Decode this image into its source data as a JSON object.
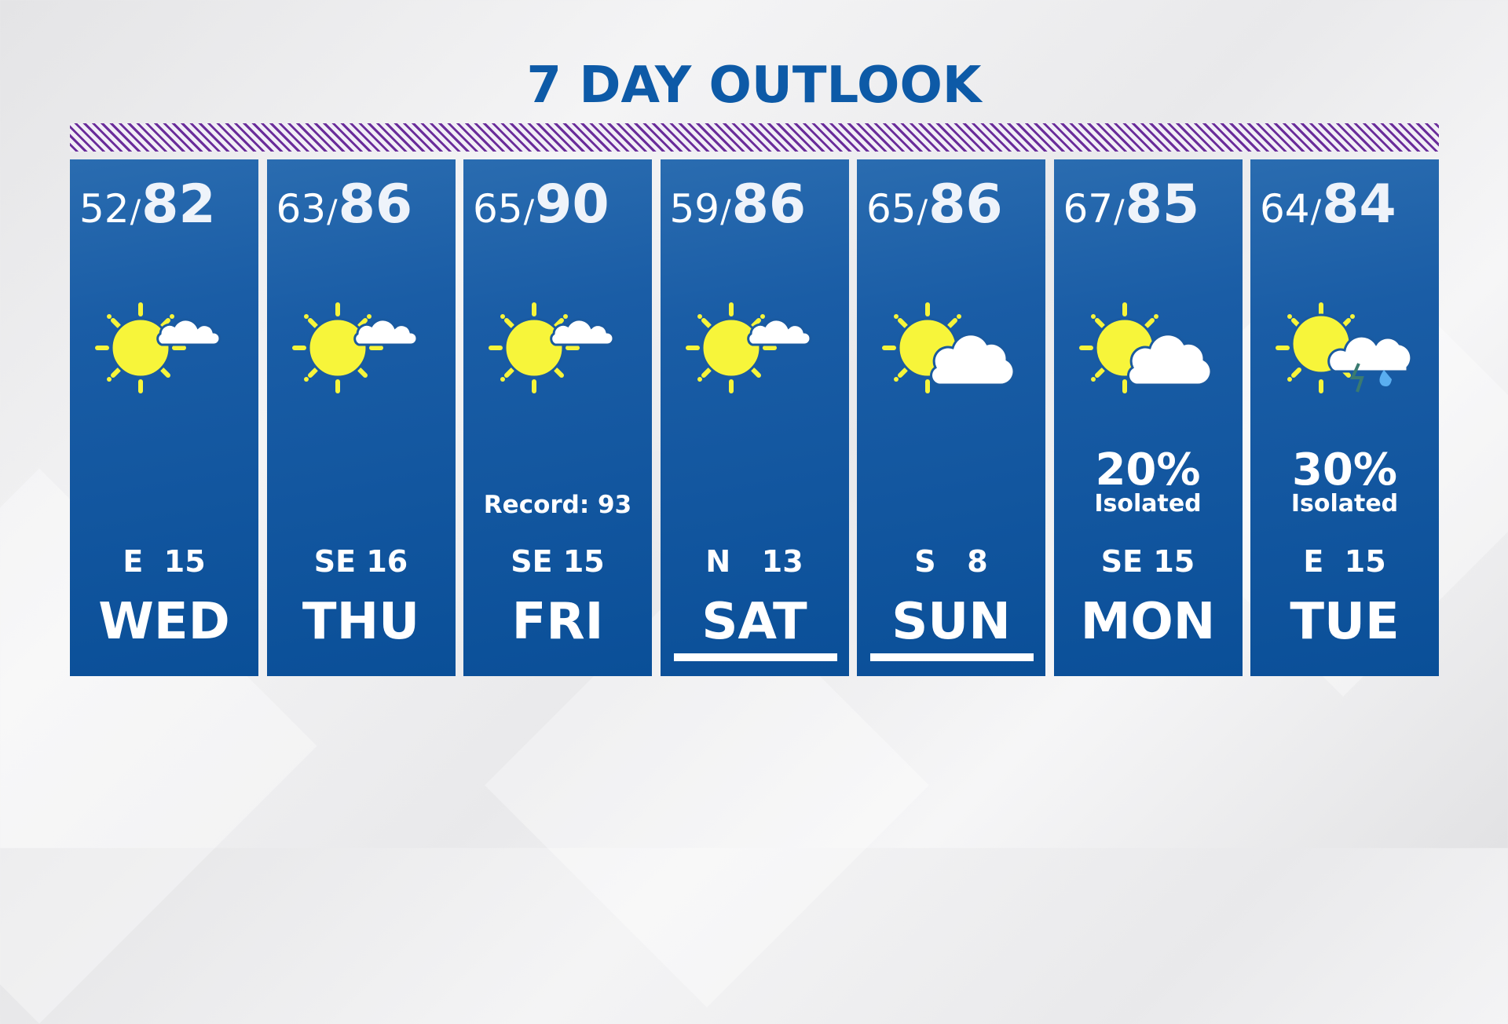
{
  "title": "7 DAY OUTLOOK",
  "colors": {
    "title": "#0d5aa7",
    "panel": "#0a4f98",
    "hatch": "#6a2d9a",
    "sun": "#f7f53a",
    "cloud": "#ffffff"
  },
  "days": [
    {
      "day": "WED",
      "low": "52",
      "high": "82",
      "icon": "sun-small-cloud-icon",
      "wind": "E  15",
      "note": "",
      "precip": "",
      "precip_note": "",
      "weekend": false
    },
    {
      "day": "THU",
      "low": "63",
      "high": "86",
      "icon": "sun-small-cloud-icon",
      "wind": "SE 16",
      "note": "",
      "precip": "",
      "precip_note": "",
      "weekend": false
    },
    {
      "day": "FRI",
      "low": "65",
      "high": "90",
      "icon": "sun-small-cloud-icon",
      "wind": "SE 15",
      "note": "Record: 93",
      "precip": "",
      "precip_note": "",
      "weekend": false
    },
    {
      "day": "SAT",
      "low": "59",
      "high": "86",
      "icon": "sun-small-cloud-icon",
      "wind": "N   13",
      "note": "",
      "precip": "",
      "precip_note": "",
      "weekend": true
    },
    {
      "day": "SUN",
      "low": "65",
      "high": "86",
      "icon": "partly-cloudy-icon",
      "wind": "S   8",
      "note": "",
      "precip": "",
      "precip_note": "",
      "weekend": true
    },
    {
      "day": "MON",
      "low": "67",
      "high": "85",
      "icon": "partly-cloudy-icon",
      "wind": "SE 15",
      "note": "",
      "precip": "20%",
      "precip_note": "Isolated",
      "weekend": false
    },
    {
      "day": "TUE",
      "low": "64",
      "high": "84",
      "icon": "thunderstorm-icon",
      "wind": "E  15",
      "note": "",
      "precip": "30%",
      "precip_note": "Isolated",
      "weekend": false
    }
  ]
}
